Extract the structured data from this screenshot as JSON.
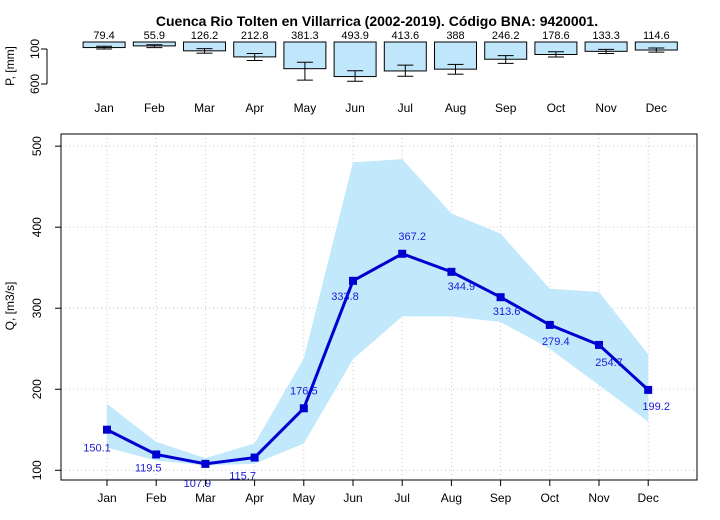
{
  "chart_data": [
    {
      "type": "bar",
      "title": "Cuenca Rio Tolten en Villarrica (2002-2019). Código BNA: 9420001.",
      "ylabel": "P, [mm]",
      "yticks": [
        100,
        600
      ],
      "ylim": [
        0,
        600
      ],
      "y_inverted": true,
      "categories": [
        "Jan",
        "Feb",
        "Mar",
        "Apr",
        "May",
        "Jun",
        "Jul",
        "Aug",
        "Sep",
        "Oct",
        "Nov",
        "Dec"
      ],
      "values": [
        79.4,
        55.9,
        126.2,
        212.8,
        381.3,
        493.9,
        413.6,
        388,
        246.2,
        178.6,
        133.3,
        114.6
      ],
      "value_labels": [
        "79.4",
        "55.9",
        "126.2",
        "212.8",
        "381.3",
        "493.9",
        "413.6",
        "388",
        "246.2",
        "178.6",
        "133.3",
        "114.6"
      ],
      "error_low": [
        60,
        40,
        95,
        165,
        290,
        410,
        330,
        320,
        195,
        140,
        105,
        85
      ],
      "error_high": [
        100,
        80,
        160,
        265,
        545,
        560,
        490,
        460,
        305,
        215,
        165,
        145
      ],
      "colors": {
        "fill": "#bfe6fb",
        "stroke": "#000000"
      }
    },
    {
      "type": "line",
      "ylabel": "Q, [m3/s]",
      "ylim": [
        88,
        515
      ],
      "yticks": [
        100,
        200,
        300,
        400,
        500
      ],
      "categories": [
        "Jan",
        "Feb",
        "Mar",
        "Apr",
        "May",
        "Jun",
        "Jul",
        "Aug",
        "Sep",
        "Oct",
        "Nov",
        "Dec"
      ],
      "values": [
        150.1,
        119.5,
        107.9,
        115.7,
        176.5,
        333.8,
        367.2,
        344.9,
        313.6,
        279.4,
        254.7,
        199.2
      ],
      "value_labels": [
        "150.1",
        "119.5",
        "107.9",
        "115.7",
        "176.5",
        "333.8",
        "367.2",
        "344.9",
        "313.6",
        "279.4",
        "254.7",
        "199.2"
      ],
      "band_low": [
        128,
        112,
        106,
        108,
        133,
        237,
        290,
        290,
        283,
        250,
        205,
        160
      ],
      "band_high": [
        182,
        135,
        115,
        133,
        238,
        480,
        484,
        417,
        392,
        324,
        320,
        243
      ],
      "grid": true,
      "colors": {
        "line": "#0000d0",
        "band": "#c2e8fc",
        "label": "#1a1ad6",
        "grid": "#c8c8c8"
      }
    }
  ]
}
